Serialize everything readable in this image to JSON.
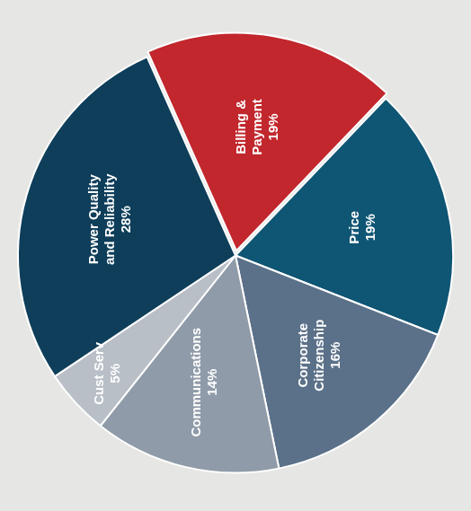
{
  "chart_data": {
    "type": "pie",
    "categories": [
      "Billing & Payment",
      "Price",
      "Corporate Citizenship",
      "Communications",
      "Cust Serv",
      "Power Quality and Reliability"
    ],
    "values": [
      19,
      19,
      16,
      14,
      5,
      28
    ],
    "value_labels": [
      "19%",
      "19%",
      "16%",
      "14%",
      "5%",
      "28%"
    ],
    "colors": [
      "#c1272d",
      "#0f5574",
      "#5b7189",
      "#8f9ba8",
      "#b9bfc7",
      "#0e3e5a"
    ],
    "data_labels": true
  }
}
